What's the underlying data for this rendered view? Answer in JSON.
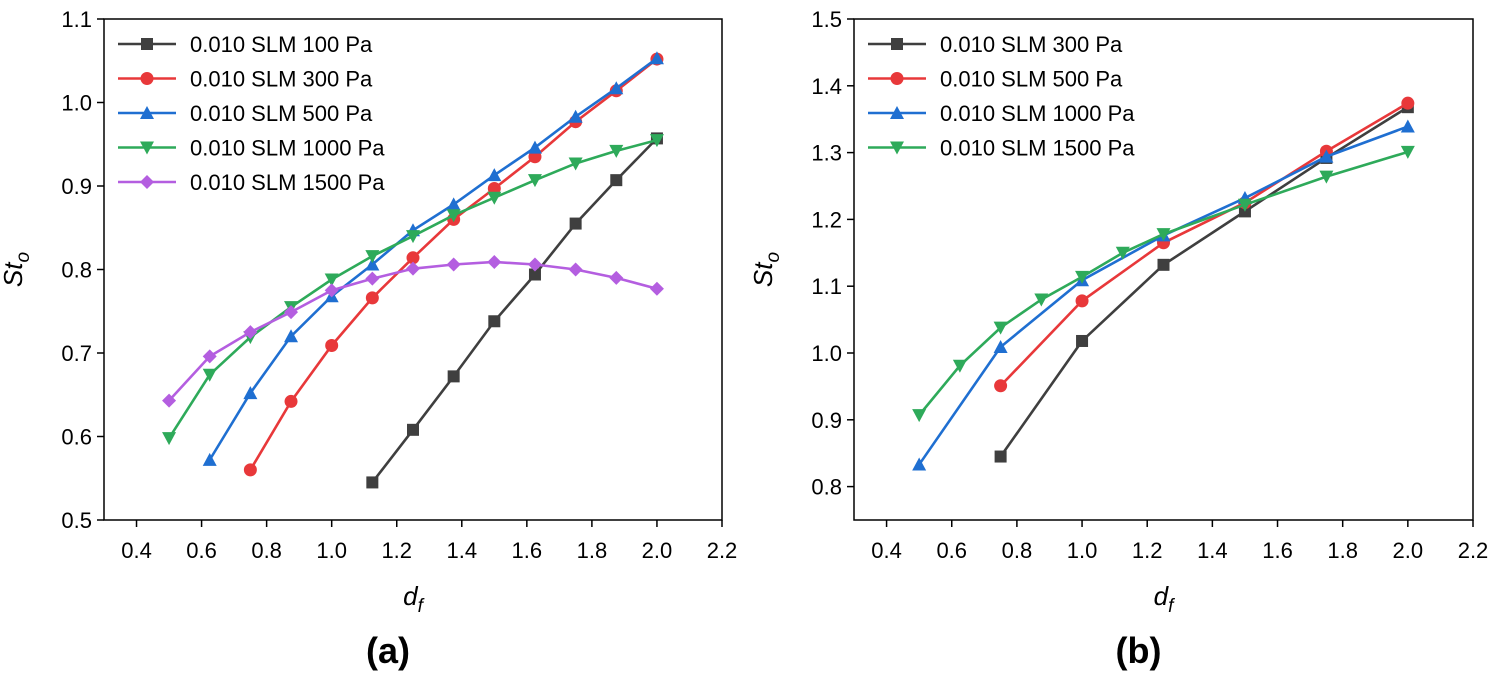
{
  "chart_data": [
    {
      "type": "line",
      "panel_label": "(a)",
      "xlabel": {
        "main": "d",
        "sub": "f"
      },
      "ylabel": {
        "main": "St",
        "sub": "o"
      },
      "xlim": [
        0.3,
        2.2
      ],
      "ylim": [
        0.5,
        1.1
      ],
      "xticks": [
        "0.4",
        "0.6",
        "0.8",
        "1.0",
        "1.2",
        "1.4",
        "1.6",
        "1.8",
        "2.0",
        "2.2"
      ],
      "yticks": [
        "0.5",
        "0.6",
        "0.7",
        "0.8",
        "0.9",
        "1.0",
        "1.1"
      ],
      "legend_position": "top-left",
      "grid": false,
      "series": [
        {
          "name": "0.010 SLM 100 Pa",
          "color": "#3f3f3f",
          "marker": "square",
          "x": [
            1.125,
            1.25,
            1.375,
            1.5,
            1.625,
            1.75,
            1.875,
            2.0
          ],
          "y": [
            0.545,
            0.608,
            0.672,
            0.738,
            0.794,
            0.855,
            0.907,
            0.957
          ]
        },
        {
          "name": "0.010 SLM 300 Pa",
          "color": "#e8383a",
          "marker": "circle",
          "x": [
            0.75,
            0.875,
            1.0,
            1.125,
            1.25,
            1.375,
            1.5,
            1.625,
            1.75,
            1.875,
            2.0
          ],
          "y": [
            0.56,
            0.642,
            0.709,
            0.766,
            0.814,
            0.86,
            0.897,
            0.935,
            0.977,
            1.014,
            1.052
          ]
        },
        {
          "name": "0.010 SLM 500 Pa",
          "color": "#1f6fd1",
          "marker": "triangle-up",
          "x": [
            0.625,
            0.75,
            0.875,
            1.0,
            1.125,
            1.25,
            1.375,
            1.5,
            1.625,
            1.75,
            1.875,
            2.0
          ],
          "y": [
            0.572,
            0.652,
            0.72,
            0.768,
            0.806,
            0.847,
            0.878,
            0.913,
            0.946,
            0.983,
            1.017,
            1.053
          ]
        },
        {
          "name": "0.010 SLM 1000 Pa",
          "color": "#2eaa5a",
          "marker": "triangle-down",
          "x": [
            0.5,
            0.625,
            0.75,
            0.875,
            1.0,
            1.125,
            1.25,
            1.375,
            1.5,
            1.625,
            1.75,
            1.875,
            2.0
          ],
          "y": [
            0.598,
            0.674,
            0.719,
            0.755,
            0.788,
            0.816,
            0.84,
            0.865,
            0.886,
            0.907,
            0.927,
            0.942,
            0.955
          ]
        },
        {
          "name": "0.010 SLM 1500 Pa",
          "color": "#b45ee0",
          "marker": "diamond",
          "x": [
            0.5,
            0.625,
            0.75,
            0.875,
            1.0,
            1.125,
            1.25,
            1.375,
            1.5,
            1.625,
            1.75,
            1.875,
            2.0
          ],
          "y": [
            0.643,
            0.696,
            0.725,
            0.749,
            0.775,
            0.789,
            0.801,
            0.806,
            0.809,
            0.806,
            0.8,
            0.79,
            0.777
          ]
        }
      ]
    },
    {
      "type": "line",
      "panel_label": "(b)",
      "xlabel": {
        "main": "d",
        "sub": "f"
      },
      "ylabel": {
        "main": "St",
        "sub": "o"
      },
      "xlim": [
        0.3,
        2.2
      ],
      "ylim": [
        0.75,
        1.5
      ],
      "xticks": [
        "0.4",
        "0.6",
        "0.8",
        "1.0",
        "1.2",
        "1.4",
        "1.6",
        "1.8",
        "2.0",
        "2.2"
      ],
      "yticks": [
        "0.8",
        "0.9",
        "1.0",
        "1.1",
        "1.2",
        "1.3",
        "1.4",
        "1.5"
      ],
      "legend_position": "top-left",
      "grid": false,
      "series": [
        {
          "name": "0.010 SLM 300 Pa",
          "color": "#3f3f3f",
          "marker": "square",
          "x": [
            0.75,
            1.0,
            1.25,
            1.5,
            1.75,
            2.0
          ],
          "y": [
            0.845,
            1.018,
            1.132,
            1.212,
            1.292,
            1.368
          ]
        },
        {
          "name": "0.010 SLM 500 Pa",
          "color": "#e8383a",
          "marker": "circle",
          "x": [
            0.75,
            1.0,
            1.25,
            1.5,
            1.75,
            2.0
          ],
          "y": [
            0.951,
            1.078,
            1.165,
            1.225,
            1.302,
            1.374
          ]
        },
        {
          "name": "0.010 SLM 1000 Pa",
          "color": "#1f6fd1",
          "marker": "triangle-up",
          "x": [
            0.5,
            0.75,
            1.0,
            1.25,
            1.5,
            1.75,
            2.0
          ],
          "y": [
            0.833,
            1.009,
            1.109,
            1.176,
            1.232,
            1.294,
            1.339
          ]
        },
        {
          "name": "0.010 SLM 1500 Pa",
          "color": "#2eaa5a",
          "marker": "triangle-down",
          "x": [
            0.5,
            0.625,
            0.75,
            0.875,
            1.0,
            1.125,
            1.25,
            1.5,
            1.75,
            2.0
          ],
          "y": [
            0.907,
            0.981,
            1.038,
            1.08,
            1.114,
            1.15,
            1.178,
            1.222,
            1.264,
            1.301
          ]
        }
      ]
    }
  ]
}
